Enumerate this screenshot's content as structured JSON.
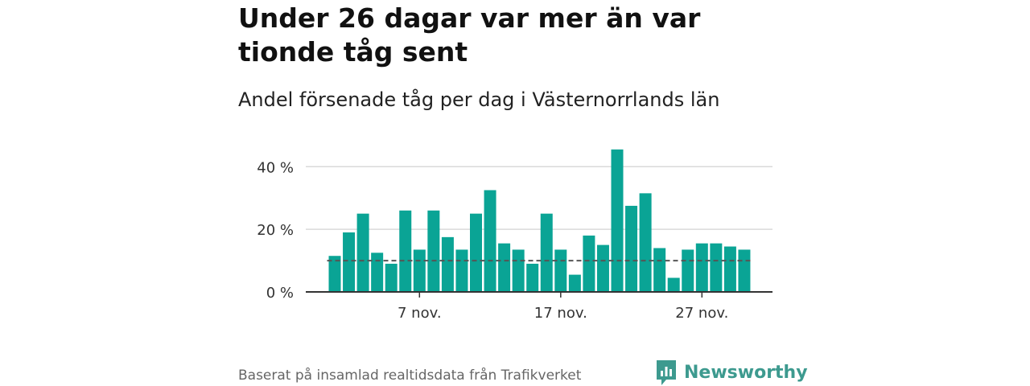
{
  "header": {
    "title": "Under 26 dagar var mer än var tionde tåg sent",
    "subtitle": "Andel försenade tåg per dag i Västernorrlands län"
  },
  "footer": {
    "source": "Baserat på insamlad realtidsdata från Trafikverket",
    "brand": "Newsworthy"
  },
  "colors": {
    "bar": "#0aa495",
    "grid": "#d9d9d9",
    "axis": "#333333",
    "reference_line": "#555555",
    "brand": "#3d9a8f"
  },
  "chart_data": {
    "type": "bar",
    "categories": [
      "1 nov.",
      "2 nov.",
      "3 nov.",
      "4 nov.",
      "5 nov.",
      "6 nov.",
      "7 nov.",
      "8 nov.",
      "9 nov.",
      "10 nov.",
      "11 nov.",
      "12 nov.",
      "13 nov.",
      "14 nov.",
      "15 nov.",
      "16 nov.",
      "17 nov.",
      "18 nov.",
      "19 nov.",
      "20 nov.",
      "21 nov.",
      "22 nov.",
      "23 nov.",
      "24 nov.",
      "25 nov.",
      "26 nov.",
      "27 nov.",
      "28 nov.",
      "29 nov.",
      "30 nov."
    ],
    "values": [
      11.5,
      19,
      25,
      12.5,
      9,
      26,
      13.5,
      26,
      17.5,
      13.5,
      25,
      32.5,
      15.5,
      13.5,
      9,
      25,
      13.5,
      5.5,
      18,
      15,
      45.5,
      27.5,
      31.5,
      14,
      4.5,
      13.5,
      15.5,
      15.5,
      14.5,
      13.5
    ],
    "reference_line": 10,
    "ylim": [
      0,
      47
    ],
    "yticks": [
      0,
      20,
      40
    ],
    "ytick_labels": [
      "0 %",
      "20 %",
      "40 %"
    ],
    "xtick_indices": [
      6,
      16,
      26
    ],
    "xtick_labels": [
      "7 nov.",
      "17 nov.",
      "27 nov."
    ],
    "grid": true
  }
}
